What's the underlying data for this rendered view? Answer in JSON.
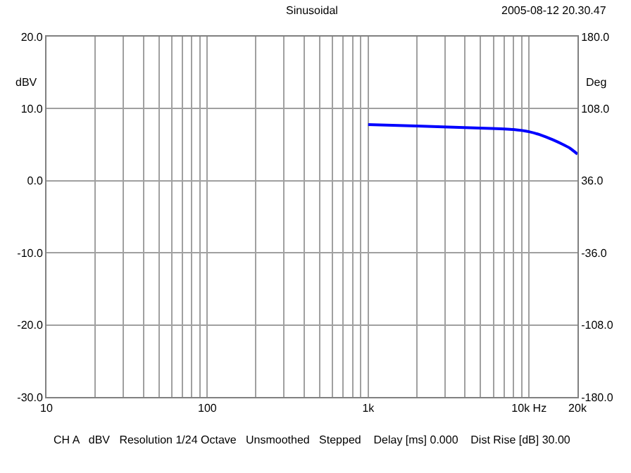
{
  "chart_data": {
    "type": "line",
    "title": "Sinusoidal",
    "subtitle": "2005-08-12 20.30.47",
    "ylabel": "dBV",
    "y2label": "Deg",
    "annotations": [
      "CH A   dBV   Resolution 1/24 Octave   Unsmoothed   Stepped    Delay [ms] 0.000    Dist Rise [dB] 30.00"
    ],
    "x": [
      1000,
      2000,
      5000,
      8000,
      10000,
      12000,
      14000,
      16000,
      18000,
      20000
    ],
    "series": [
      {
        "color": "#0000ff",
        "values": [
          7.8,
          7.6,
          7.3,
          7.1,
          6.8,
          6.3,
          5.7,
          5.1,
          4.5,
          3.7
        ]
      }
    ],
    "log": "x",
    "grid": true,
    "marker": "none",
    "line_style": "solid",
    "xlim": [
      10,
      20000
    ],
    "xticks": [
      10,
      {
        "value": 20,
        "label": null
      },
      {
        "value": 30,
        "label": null
      },
      {
        "value": 40,
        "label": null
      },
      {
        "value": 50,
        "label": null
      },
      {
        "value": 60,
        "label": null
      },
      {
        "value": 70,
        "label": null
      },
      {
        "value": 80,
        "label": null
      },
      {
        "value": 90,
        "label": null
      },
      100,
      {
        "value": 200,
        "label": null
      },
      {
        "value": 300,
        "label": null
      },
      {
        "value": 400,
        "label": null
      },
      {
        "value": 500,
        "label": null
      },
      {
        "value": 600,
        "label": null
      },
      {
        "value": 700,
        "label": null
      },
      {
        "value": 800,
        "label": null
      },
      {
        "value": 900,
        "label": null
      },
      {
        "value": 1000,
        "label": "1k"
      },
      {
        "value": 2000,
        "label": null
      },
      {
        "value": 3000,
        "label": null
      },
      {
        "value": 4000,
        "label": null
      },
      {
        "value": 5000,
        "label": null
      },
      {
        "value": 6000,
        "label": null
      },
      {
        "value": 7000,
        "label": null
      },
      {
        "value": 8000,
        "label": null
      },
      {
        "value": 9000,
        "label": null
      },
      {
        "value": 10000,
        "label": "10k Hz"
      },
      {
        "value": 20000,
        "label": "20k"
      }
    ],
    "ylim": [
      -30,
      20
    ],
    "yticks": [
      {
        "value": -30,
        "label": "-30.0"
      },
      {
        "value": -20,
        "label": "-20.0"
      },
      {
        "value": -10,
        "label": "-10.0"
      },
      {
        "value": 0,
        "label": "0.0"
      },
      {
        "value": 10,
        "label": "10.0"
      },
      {
        "value": 20,
        "label": "20.0"
      }
    ],
    "y2lim": [
      -180,
      180
    ],
    "y2ticks": [
      {
        "value": -180,
        "label": "-180.0"
      },
      {
        "value": -108,
        "label": "-108.0"
      },
      {
        "value": -36,
        "label": "-36.0"
      },
      {
        "value": 36,
        "label": "36.0"
      },
      {
        "value": 108,
        "label": "108.0"
      },
      {
        "value": 180,
        "label": "180.0"
      }
    ]
  }
}
